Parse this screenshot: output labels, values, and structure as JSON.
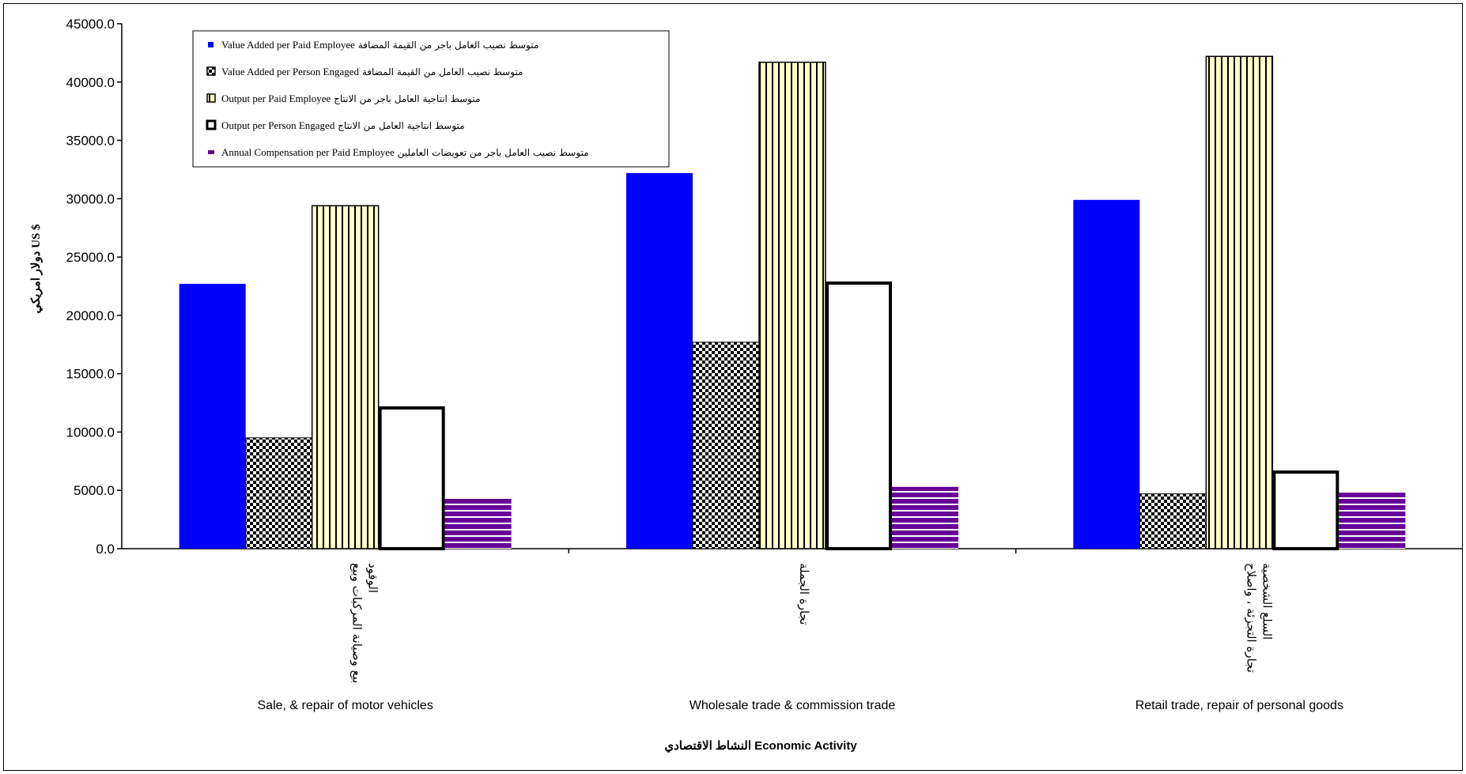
{
  "chart_data": {
    "type": "bar",
    "title": "",
    "ylabel": "دولار امريكي US $",
    "xlabel": "النشاط الاقتصادي Economic Activity",
    "ylim": [
      0,
      45000
    ],
    "yticks": [
      "0.0",
      "5000.0",
      "10000.0",
      "15000.0",
      "20000.0",
      "25000.0",
      "30000.0",
      "35000.0",
      "40000.0",
      "45000.0"
    ],
    "categories": [
      {
        "en": "Sale, & repair of motor vehicles",
        "ar": [
          "بيع وصيانة المركبات وبيع",
          "الوقود"
        ]
      },
      {
        "en": "Wholesale trade & commission trade",
        "ar": [
          "تجارة الجملة"
        ]
      },
      {
        "en": "Retail trade, repair of personal goods",
        "ar": [
          "تجارة التجزئة ، واصلاح",
          "السلع الشخصية"
        ]
      }
    ],
    "series": [
      {
        "name": "متوسط نصيب العامل باجر من القيمة المضافة Value Added per Paid Employee",
        "values": [
          22700,
          32200,
          29900
        ],
        "style": "solid",
        "color": "#0000ff"
      },
      {
        "name": "متوسط نصيب العامل من القيمة المضافة Value Added per Person Engaged",
        "values": [
          9500,
          17700,
          4700
        ],
        "style": "checker",
        "color": "#000000"
      },
      {
        "name": "متوسط انتاجية العامل باجر من الانتاج Output per Paid Employee",
        "values": [
          29400,
          41700,
          42200
        ],
        "style": "vstripe",
        "color": "#ffffcc"
      },
      {
        "name": "متوسط انتاجية العامل من الانتاج Output per Person Engaged",
        "values": [
          12200,
          22900,
          6700
        ],
        "style": "outline",
        "color": "#ffffff"
      },
      {
        "name": "متوسط نصيب العامل باجر من تعويضات العاملين Annual Compensation per Paid Employee",
        "values": [
          4400,
          5300,
          4800
        ],
        "style": "hstripe",
        "color": "#660099"
      }
    ],
    "legend": {
      "placement": "top-left",
      "entries": [
        {
          "en": "Value Added per Paid  Employee",
          "ar": "متوسط نصيب العامل باجر من القيمة المضافة"
        },
        {
          "en": "Value Added per Person Engaged",
          "ar": "متوسط نصيب العامل من القيمة المضافة"
        },
        {
          "en": "Output per Paid Employee",
          "ar": "متوسط انتاجية العامل باجر من الانتاج"
        },
        {
          "en": "Output per Person Engaged",
          "ar": "متوسط انتاجية العامل من الانتاج"
        },
        {
          "en": "Annual  Compensation per Paid Employee",
          "ar": "متوسط نصيب العامل باجر من تعويضات العاملين"
        }
      ]
    },
    "grid": false
  }
}
